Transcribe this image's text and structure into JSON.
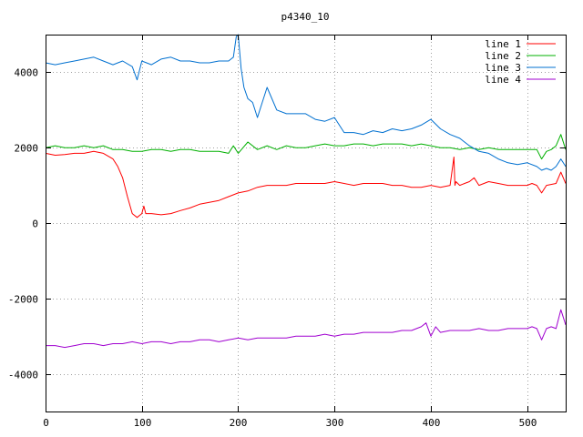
{
  "chart_data": {
    "type": "line",
    "title": "p4340_10",
    "xlabel": "",
    "ylabel": "",
    "xlim": [
      0,
      540
    ],
    "ylim": [
      -5000,
      5000
    ],
    "xticks": [
      0,
      100,
      200,
      300,
      400,
      500
    ],
    "yticks": [
      -4000,
      -2000,
      0,
      2000,
      4000
    ],
    "grid": true,
    "legend_position": "top-right",
    "series": [
      {
        "name": "line 1",
        "color": "#ff0000",
        "x": [
          0,
          10,
          20,
          30,
          40,
          50,
          60,
          70,
          75,
          80,
          85,
          90,
          95,
          100,
          102,
          104,
          110,
          120,
          130,
          140,
          150,
          160,
          170,
          180,
          190,
          200,
          210,
          220,
          230,
          240,
          250,
          260,
          270,
          280,
          290,
          300,
          310,
          320,
          330,
          340,
          350,
          360,
          370,
          380,
          390,
          400,
          410,
          420,
          424,
          425,
          426,
          430,
          435,
          440,
          445,
          450,
          460,
          470,
          480,
          490,
          500,
          505,
          510,
          515,
          520,
          530,
          535,
          540
        ],
        "y": [
          1850,
          1800,
          1820,
          1850,
          1850,
          1900,
          1850,
          1700,
          1500,
          1200,
          700,
          250,
          150,
          250,
          450,
          250,
          250,
          220,
          250,
          330,
          400,
          500,
          550,
          600,
          700,
          800,
          850,
          950,
          1000,
          1000,
          1000,
          1050,
          1050,
          1050,
          1050,
          1100,
          1050,
          1000,
          1050,
          1050,
          1050,
          1000,
          1000,
          950,
          950,
          1000,
          950,
          1000,
          1750,
          1000,
          1100,
          1000,
          1050,
          1100,
          1200,
          1000,
          1100,
          1050,
          1000,
          1000,
          1000,
          1050,
          1000,
          800,
          1000,
          1050,
          1350,
          1050
        ]
      },
      {
        "name": "line 2",
        "color": "#00b000",
        "x": [
          0,
          10,
          20,
          30,
          40,
          50,
          60,
          70,
          80,
          90,
          100,
          110,
          120,
          130,
          140,
          150,
          160,
          170,
          180,
          190,
          195,
          200,
          205,
          210,
          220,
          230,
          240,
          250,
          260,
          270,
          280,
          290,
          300,
          310,
          320,
          330,
          340,
          350,
          360,
          370,
          380,
          390,
          400,
          410,
          420,
          430,
          440,
          450,
          460,
          470,
          480,
          490,
          500,
          510,
          515,
          520,
          525,
          530,
          535,
          540
        ],
        "y": [
          2000,
          2050,
          2000,
          2000,
          2050,
          2000,
          2050,
          1950,
          1950,
          1900,
          1900,
          1950,
          1950,
          1900,
          1950,
          1950,
          1900,
          1900,
          1900,
          1850,
          2050,
          1850,
          2000,
          2150,
          1950,
          2050,
          1950,
          2050,
          2000,
          2000,
          2050,
          2100,
          2050,
          2050,
          2100,
          2100,
          2050,
          2100,
          2100,
          2100,
          2050,
          2100,
          2050,
          2000,
          2000,
          1950,
          2000,
          1950,
          2000,
          1950,
          1950,
          1950,
          1950,
          1950,
          1700,
          1900,
          1950,
          2050,
          2350,
          1950
        ]
      },
      {
        "name": "line 3",
        "color": "#0070d0",
        "x": [
          0,
          10,
          20,
          30,
          40,
          50,
          60,
          70,
          80,
          90,
          95,
          100,
          110,
          120,
          130,
          140,
          150,
          160,
          170,
          180,
          190,
          195,
          198,
          200,
          203,
          206,
          210,
          215,
          220,
          225,
          230,
          240,
          250,
          260,
          270,
          280,
          290,
          300,
          310,
          320,
          330,
          340,
          350,
          360,
          370,
          380,
          390,
          400,
          410,
          420,
          430,
          440,
          450,
          460,
          470,
          480,
          490,
          500,
          510,
          515,
          520,
          525,
          530,
          535,
          540
        ],
        "y": [
          4250,
          4200,
          4250,
          4300,
          4350,
          4400,
          4300,
          4200,
          4300,
          4150,
          3800,
          4300,
          4200,
          4350,
          4400,
          4300,
          4300,
          4250,
          4250,
          4300,
          4300,
          4400,
          4950,
          5000,
          4100,
          3600,
          3300,
          3200,
          2800,
          3200,
          3600,
          3000,
          2900,
          2900,
          2900,
          2750,
          2700,
          2800,
          2400,
          2400,
          2350,
          2450,
          2400,
          2500,
          2450,
          2500,
          2600,
          2750,
          2500,
          2350,
          2250,
          2050,
          1900,
          1850,
          1700,
          1600,
          1550,
          1600,
          1500,
          1400,
          1450,
          1400,
          1500,
          1700,
          1500
        ]
      },
      {
        "name": "line 4",
        "color": "#a000d0",
        "x": [
          0,
          10,
          20,
          30,
          40,
          50,
          60,
          70,
          80,
          90,
          100,
          110,
          120,
          130,
          140,
          150,
          160,
          170,
          180,
          190,
          200,
          210,
          220,
          230,
          240,
          250,
          260,
          270,
          280,
          290,
          300,
          310,
          320,
          330,
          340,
          350,
          360,
          370,
          380,
          390,
          395,
          400,
          405,
          410,
          420,
          430,
          440,
          450,
          460,
          470,
          480,
          490,
          500,
          505,
          510,
          515,
          520,
          525,
          530,
          535,
          540
        ],
        "y": [
          -3250,
          -3250,
          -3300,
          -3250,
          -3200,
          -3200,
          -3250,
          -3200,
          -3200,
          -3150,
          -3200,
          -3150,
          -3150,
          -3200,
          -3150,
          -3150,
          -3100,
          -3100,
          -3150,
          -3100,
          -3050,
          -3100,
          -3050,
          -3050,
          -3050,
          -3050,
          -3000,
          -3000,
          -3000,
          -2950,
          -3000,
          -2950,
          -2950,
          -2900,
          -2900,
          -2900,
          -2900,
          -2850,
          -2850,
          -2750,
          -2650,
          -3000,
          -2750,
          -2900,
          -2850,
          -2850,
          -2850,
          -2800,
          -2850,
          -2850,
          -2800,
          -2800,
          -2800,
          -2750,
          -2800,
          -3100,
          -2800,
          -2750,
          -2800,
          -2300,
          -2700
        ]
      }
    ]
  }
}
